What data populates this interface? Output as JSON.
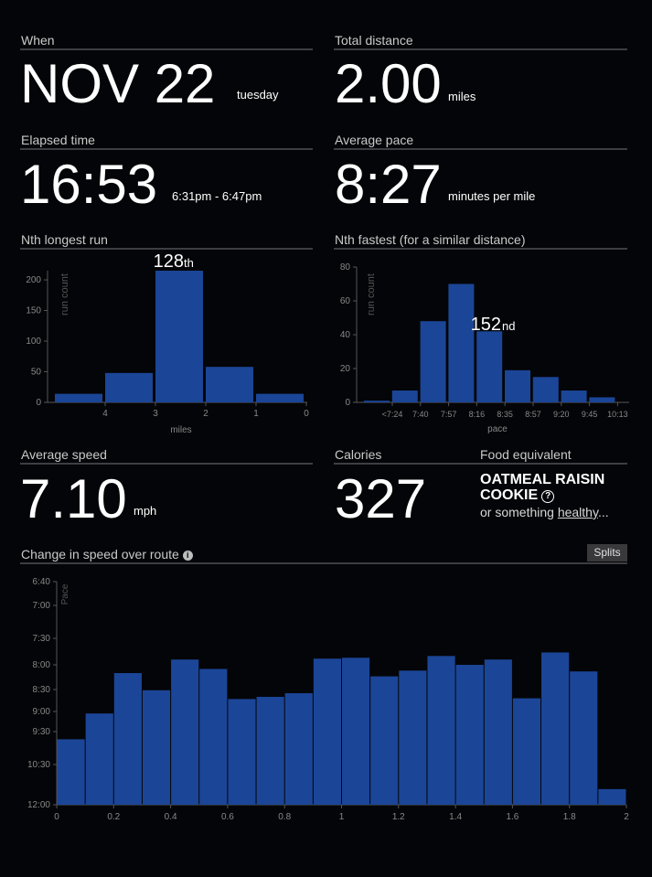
{
  "when": {
    "label": "When",
    "date": "NOV 22",
    "weekday": "tuesday"
  },
  "distance": {
    "label": "Total distance",
    "value": "2.00",
    "unit": "miles"
  },
  "elapsed": {
    "label": "Elapsed time",
    "value": "16:53",
    "range": "6:31pm - 6:47pm"
  },
  "pace": {
    "label": "Average pace",
    "value": "8:27",
    "unit": "minutes per mile"
  },
  "speed": {
    "label": "Average speed",
    "value": "7.10",
    "unit": "mph"
  },
  "calories": {
    "label": "Calories",
    "value": "327"
  },
  "food": {
    "label": "Food equivalent",
    "item_line1": "OATMEAL RAISIN",
    "item_line2": "COOKIE",
    "help_icon": "question-icon",
    "alt_prefix": "or something ",
    "alt_link": "healthy",
    "alt_suffix": "..."
  },
  "route": {
    "label": "Change in speed over route",
    "info_icon": "info-icon",
    "splits_label": "Splits"
  },
  "colors": {
    "bar": "#1b4597",
    "axis": "#555555",
    "tick": "#888888"
  },
  "chart_data": [
    {
      "id": "longest",
      "title": "Nth longest run",
      "type": "bar",
      "xlabel": "miles",
      "ylabel": "run count",
      "x_ticks": [
        "4",
        "3",
        "2",
        "1",
        "0"
      ],
      "y_ticks": [
        "0",
        "50",
        "100",
        "150",
        "200"
      ],
      "ylim": [
        0,
        215
      ],
      "values": [
        14,
        48,
        215,
        58,
        14
      ],
      "highlight_index": 2,
      "rank_number": "128",
      "rank_suffix": "th"
    },
    {
      "id": "fastest",
      "title": "Nth fastest (for a similar distance)",
      "type": "bar",
      "xlabel": "pace",
      "ylabel": "run count",
      "x_ticks": [
        "<7:24",
        "7:40",
        "7:57",
        "8:16",
        "8:35",
        "8:57",
        "9:20",
        "9:45",
        "10:13"
      ],
      "y_ticks": [
        "0",
        "20",
        "40",
        "60",
        "80"
      ],
      "ylim": [
        0,
        80
      ],
      "values": [
        1,
        7,
        48,
        70,
        42,
        19,
        15,
        7,
        3
      ],
      "highlight_index": 4,
      "rank_number": "152",
      "rank_suffix": "nd"
    },
    {
      "id": "route",
      "title": "Change in speed over route",
      "type": "bar",
      "xlabel": "",
      "ylabel": "Pace",
      "x_ticks": [
        "0",
        "0.2",
        "0.4",
        "0.6",
        "0.8",
        "1",
        "1.2",
        "1.4",
        "1.6",
        "1.8",
        "2"
      ],
      "y_ticks": [
        "6:40",
        "7:00",
        "7:30",
        "8:00",
        "8:30",
        "9:00",
        "9:30",
        "10:30",
        "12:00"
      ],
      "x_range": [
        0,
        2
      ],
      "bin_width_miles": 0.1,
      "values": [
        "9:44",
        "9:03",
        "8:10",
        "8:31",
        "7:54",
        "8:05",
        "8:43",
        "8:40",
        "8:35",
        "7:53",
        "7:52",
        "8:14",
        "8:07",
        "7:50",
        "8:00",
        "7:54",
        "8:42",
        "7:46",
        "8:08",
        "11:25"
      ]
    }
  ]
}
